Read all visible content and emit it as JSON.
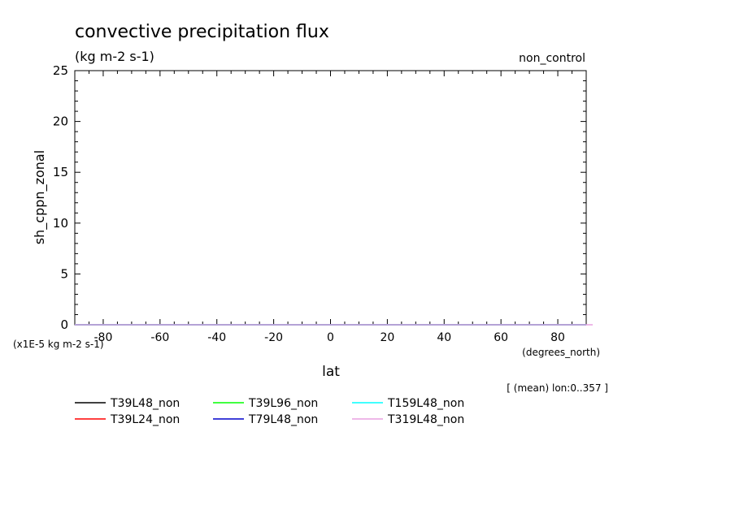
{
  "chart_data": {
    "type": "line",
    "title": "convective precipitation flux",
    "subtitle": "(kg m-2 s-1)",
    "corner_label": "non_control",
    "xlabel": "lat",
    "x_units": "(degrees_north)",
    "ylabel": "sh_cppn_zonal",
    "y_scale_note": "(x1E-5 kg m-2 s-1)",
    "footnote": "[ (mean) lon:0..357 ]",
    "xlim": [
      -90,
      90
    ],
    "ylim": [
      0,
      25
    ],
    "x_ticks": [
      -80,
      -60,
      -40,
      -20,
      0,
      20,
      40,
      60,
      80
    ],
    "x_tick_labels": [
      "-80",
      "-60",
      "-40",
      "-20",
      "0",
      "20",
      "40",
      "60",
      "80"
    ],
    "y_ticks": [
      0,
      5,
      10,
      15,
      20,
      25
    ],
    "y_tick_labels": [
      "0",
      "5",
      "10",
      "15",
      "20",
      "25"
    ],
    "grid": false,
    "legend_position": "bottom",
    "x": [
      -90,
      90
    ],
    "series": [
      {
        "name": "T39L48_non",
        "color": "#000000",
        "values": [
          0,
          0
        ]
      },
      {
        "name": "T39L24_non",
        "color": "#ff0000",
        "values": [
          0,
          0
        ]
      },
      {
        "name": "T39L96_non",
        "color": "#00ff00",
        "values": [
          0,
          0
        ]
      },
      {
        "name": "T79L48_non",
        "color": "#0000cc",
        "values": [
          0,
          0
        ]
      },
      {
        "name": "T159L48_non",
        "color": "#00ffff",
        "values": [
          0,
          0
        ]
      },
      {
        "name": "T319L48_non",
        "color": "#e8a0e0",
        "values": [
          0,
          0
        ]
      }
    ]
  }
}
